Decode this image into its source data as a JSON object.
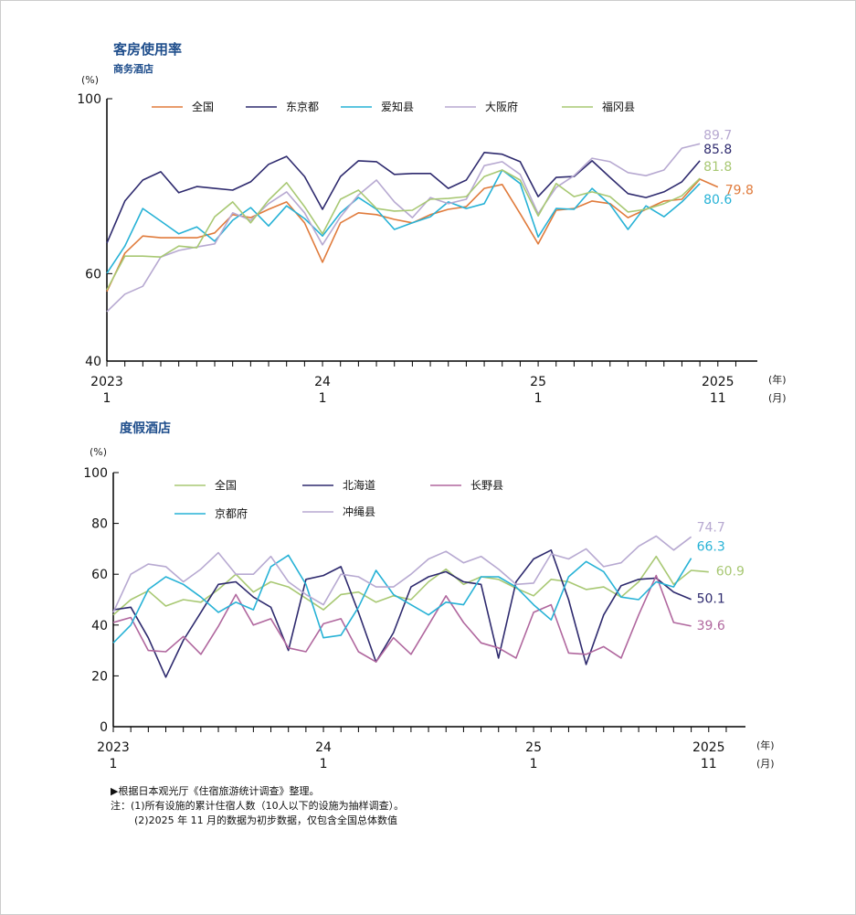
{
  "charts_header": {
    "top_title": "客房使用率",
    "top_subtitle": "商务酒店",
    "bottom_title": "度假酒店"
  },
  "notes": [
    "▶根据日本观光厅《住宿旅游统计调查》整理。",
    "注：(1)所有设施的累计住宿人数（10人以下的设施为抽样调查）。",
    "(2)2025 年 11 月的数据为初步数据，仅包含全国总体数值"
  ],
  "chart_data": [
    {
      "type": "line",
      "title": "客房使用率",
      "subtitle": "商务酒店",
      "ylabel": "(%)",
      "ylim": [
        40,
        100
      ],
      "yticks": [
        40,
        60,
        100
      ],
      "xticks": [
        {
          "i": 0,
          "year": "2023",
          "month": "1"
        },
        {
          "i": 12,
          "year": "24",
          "month": "1"
        },
        {
          "i": 24,
          "year": "25",
          "month": "1"
        },
        {
          "i": 34,
          "year": "2025",
          "month": "11"
        }
      ],
      "xunit_year": "(年)",
      "xunit_month": "(月)",
      "legend": "top",
      "series": [
        {
          "name": "全国",
          "color": "#e07b3c",
          "end_label": "79.8",
          "values": [
            55.9,
            64.7,
            68.6,
            68.2,
            68.2,
            68.2,
            69.3,
            73.5,
            72.8,
            74.7,
            76.4,
            71.6,
            62.6,
            71.6,
            73.9,
            73.5,
            72.4,
            71.6,
            73.5,
            74.7,
            75.3,
            79.5,
            80.4,
            73.7,
            66.8,
            74.5,
            74.9,
            76.6,
            76.0,
            72.8,
            74.7,
            76.6,
            77.0,
            81.6,
            79.8
          ]
        },
        {
          "name": "东京都",
          "color": "#2e2a6e",
          "end_label": "85.8",
          "values": [
            67.0,
            76.6,
            81.4,
            83.3,
            78.5,
            79.9,
            79.5,
            79.1,
            81.0,
            85.0,
            86.8,
            82.2,
            74.7,
            82.2,
            85.8,
            85.6,
            82.7,
            82.9,
            82.9,
            79.5,
            81.4,
            87.7,
            87.3,
            85.6,
            77.6,
            82.0,
            82.2,
            85.8,
            82.0,
            78.3,
            77.4,
            78.7,
            81.0,
            85.8
          ]
        },
        {
          "name": "爱知县",
          "color": "#27b2d6",
          "end_label": "80.6",
          "values": [
            60.1,
            66.3,
            74.9,
            72.0,
            69.1,
            70.7,
            67.4,
            72.2,
            75.1,
            70.9,
            75.5,
            72.6,
            68.6,
            73.9,
            77.4,
            74.7,
            70.1,
            71.6,
            73.0,
            76.4,
            74.9,
            76.0,
            83.7,
            80.6,
            68.4,
            74.9,
            74.7,
            79.5,
            75.8,
            70.1,
            75.5,
            73.0,
            76.4,
            80.6
          ]
        },
        {
          "name": "大阪府",
          "color": "#b7a9d1",
          "end_label": "89.7",
          "values": [
            51.3,
            55.3,
            57.1,
            63.8,
            65.3,
            66.1,
            66.8,
            73.9,
            72.2,
            76.0,
            78.7,
            73.9,
            66.6,
            73.0,
            78.0,
            81.4,
            76.4,
            72.8,
            77.4,
            76.0,
            77.0,
            84.7,
            85.6,
            82.7,
            73.7,
            79.7,
            82.4,
            86.4,
            85.6,
            83.1,
            82.4,
            83.7,
            88.7,
            89.7
          ]
        },
        {
          "name": "福冈县",
          "color": "#a8c873",
          "end_label": "81.8",
          "values": [
            56.3,
            64.0,
            64.0,
            63.8,
            66.3,
            65.9,
            73.0,
            76.4,
            71.6,
            76.8,
            80.8,
            75.3,
            69.1,
            77.0,
            79.1,
            74.9,
            74.3,
            74.5,
            77.0,
            77.2,
            77.6,
            82.2,
            83.7,
            81.4,
            73.2,
            80.6,
            77.6,
            78.7,
            77.6,
            74.1,
            74.7,
            76.0,
            77.8,
            81.8
          ]
        }
      ]
    },
    {
      "type": "line",
      "title": "度假酒店",
      "ylabel": "(%)",
      "ylim": [
        0,
        100
      ],
      "yticks": [
        0,
        20,
        40,
        60,
        80,
        100
      ],
      "xticks": [
        {
          "i": 0,
          "year": "2023",
          "month": "1"
        },
        {
          "i": 12,
          "year": "24",
          "month": "1"
        },
        {
          "i": 24,
          "year": "25",
          "month": "1"
        },
        {
          "i": 34,
          "year": "2025",
          "month": "11"
        }
      ],
      "xunit_year": "(年)",
      "xunit_month": "(月)",
      "legend": "top",
      "series": [
        {
          "name": "全国",
          "color": "#a8c873",
          "end_label": "60.9",
          "values": [
            44,
            50,
            53.5,
            47.5,
            50,
            49,
            54,
            60,
            53,
            57,
            55,
            50.5,
            46,
            52,
            53,
            49,
            51.5,
            50,
            57,
            62,
            56,
            59,
            58,
            54.5,
            51.5,
            58,
            57,
            54,
            55,
            51,
            57,
            67,
            56,
            61.5,
            60.9
          ]
        },
        {
          "name": "北海道",
          "color": "#2e2a6e",
          "end_label": "50.1",
          "values": [
            46,
            47,
            35,
            19.5,
            34,
            45,
            56,
            57,
            51,
            47,
            30,
            58,
            59.5,
            63,
            45,
            25.5,
            37,
            55,
            59,
            61,
            57,
            56,
            27,
            57,
            66,
            69.5,
            50,
            24.5,
            44,
            55.5,
            58,
            58.5,
            53,
            50.1
          ]
        },
        {
          "name": "长野县",
          "color": "#b0679e",
          "end_label": "39.6",
          "values": [
            41,
            43,
            30,
            29.5,
            35.5,
            28.5,
            39.5,
            52,
            40,
            42.5,
            31,
            29.5,
            40.5,
            42.5,
            29.5,
            25.5,
            35,
            28.5,
            40,
            51.5,
            41,
            33,
            31,
            27,
            45,
            48,
            29,
            28.5,
            31.5,
            27,
            44,
            59.5,
            41,
            39.6
          ]
        },
        {
          "name": "京都府",
          "color": "#27b2d6",
          "end_label": "66.3",
          "values": [
            33,
            40,
            54,
            59,
            56,
            51,
            45,
            49,
            46,
            63,
            67.5,
            56,
            35,
            36,
            47,
            61.5,
            52,
            48,
            44,
            49,
            48,
            59,
            59,
            55,
            48,
            42,
            59,
            65,
            61,
            51,
            50,
            57,
            55,
            66.3
          ]
        },
        {
          "name": "冲绳县",
          "color": "#b7a9d1",
          "end_label": "74.7",
          "values": [
            45,
            60,
            64,
            63,
            57,
            62,
            68.5,
            60,
            60,
            67,
            57,
            52,
            48,
            60,
            59,
            55,
            55,
            60,
            66,
            69,
            64.5,
            67,
            62,
            56,
            56.5,
            68,
            66,
            70,
            63,
            64.5,
            71,
            75,
            69.5,
            74.7
          ]
        }
      ]
    }
  ]
}
